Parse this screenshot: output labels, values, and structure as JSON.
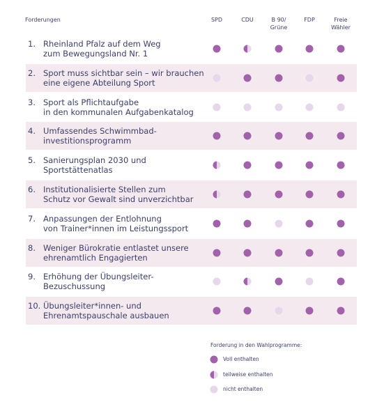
{
  "header": {
    "title": "Forderungen",
    "columns": [
      "SPD",
      "CDU",
      "B 90/\nGrüne",
      "FDP",
      "Freie\nWähler"
    ]
  },
  "table": {
    "rows": [
      {
        "number": "1.",
        "text": "Rheinland Pfalz auf dem Weg\nzum Bewegungsland Nr. 1",
        "cells": [
          0,
          1,
          0,
          0,
          0
        ]
      },
      {
        "number": "2.",
        "text": "Sport muss sichtbar sein – wir brauchen\neine eigene Abteilung Sport",
        "cells": [
          2,
          0,
          0,
          2,
          0
        ]
      },
      {
        "number": "3.",
        "text": "Sport als Pflichtaufgabe\nin den kommunalen Aufgabenkatalog",
        "cells": [
          2,
          2,
          2,
          2,
          2
        ]
      },
      {
        "number": "4.",
        "text": "Umfassendes Schwimmbad-\ninvestitionsprogramm",
        "cells": [
          0,
          0,
          0,
          0,
          0
        ]
      },
      {
        "number": "5.",
        "text": "Sanierungsplan 2030 und\nSportstättenatlas",
        "cells": [
          1,
          0,
          0,
          0,
          0
        ]
      },
      {
        "number": "6.",
        "text": "Institutionalisierte Stellen zum\nSchutz vor Gewalt sind unverzichtbar",
        "cells": [
          1,
          0,
          0,
          0,
          0
        ]
      },
      {
        "number": "7.",
        "text": "Anpassungen der Entlohnung\nvon Trainer*innen im Leistungssport",
        "cells": [
          0,
          0,
          2,
          0,
          0
        ]
      },
      {
        "number": "8.",
        "text": "Weniger Bürokratie entlastet unsere\nehrenamtlich Engagierten",
        "cells": [
          0,
          0,
          0,
          0,
          0
        ]
      },
      {
        "number": "9.",
        "text": "Erhöhung der Übungsleiter-\nBezuschussung",
        "cells": [
          2,
          1,
          0,
          2,
          0
        ]
      },
      {
        "number": "10.",
        "text": "Übungsleiter*innen- und\nEhrenamtspauschale ausbauen",
        "cells": [
          0,
          0,
          2,
          0,
          0
        ]
      }
    ]
  },
  "legend": {
    "title": "Forderung in den Wahlprogramme:",
    "items": [
      "Voll enthalten",
      "teilweise enthalten",
      "nicht enthalten"
    ]
  }
}
